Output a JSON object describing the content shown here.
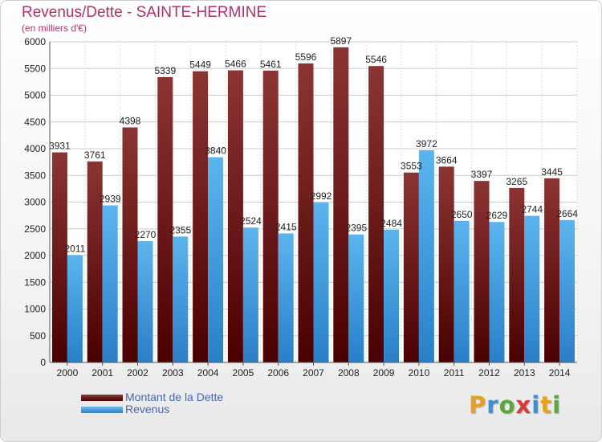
{
  "chart_data": {
    "type": "bar",
    "title": "Revenus/Dette - SAINTE-HERMINE",
    "subtitle": "(en milliers d'€)",
    "categories": [
      "2000",
      "2001",
      "2002",
      "2003",
      "2004",
      "2005",
      "2006",
      "2007",
      "2008",
      "2009",
      "2010",
      "2011",
      "2012",
      "2013",
      "2014"
    ],
    "series": [
      {
        "name": "Montant de la Dette",
        "values": [
          3931,
          3761,
          4398,
          5339,
          5449,
          5466,
          5461,
          5596,
          5897,
          5546,
          3553,
          3664,
          3397,
          3265,
          3445
        ],
        "color": "#7a2020"
      },
      {
        "name": "Revenus",
        "values": [
          2011,
          2939,
          2270,
          2355,
          3840,
          2524,
          2415,
          2992,
          2395,
          2484,
          3972,
          2650,
          2629,
          2744,
          2664
        ],
        "color": "#4aa3e6"
      }
    ],
    "ylim": [
      0,
      6000
    ],
    "yticks": [
      0,
      500,
      1000,
      1500,
      2000,
      2500,
      3000,
      3500,
      4000,
      4500,
      5000,
      5500,
      6000
    ],
    "grid": true,
    "legend_position": "bottom-left"
  },
  "brand": {
    "letters": [
      "P",
      "r",
      "o",
      "x",
      "i",
      "t",
      "i"
    ],
    "colors": [
      "#e8a020",
      "#3a8fd8",
      "#5aa83a",
      "#d83a3a",
      "#3a8fd8",
      "#e8a020",
      "#5aa83a"
    ]
  }
}
